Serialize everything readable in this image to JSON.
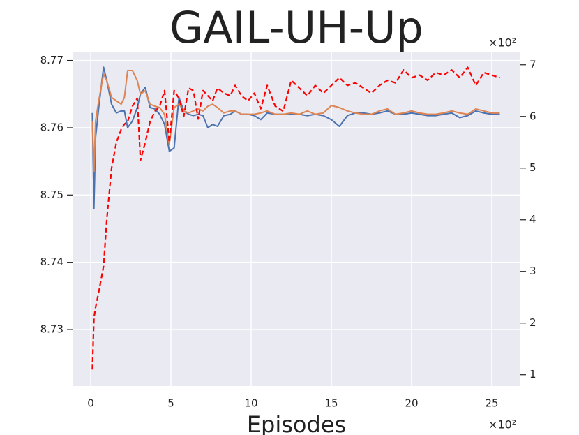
{
  "chart_data": {
    "type": "line",
    "title": "GAIL-UH-Up",
    "x_label": "Episodes",
    "x_offset_label": "×10²",
    "y2_offset_label": "×10²",
    "x": [
      0.1,
      0.2,
      0.3,
      0.5,
      0.8,
      1.0,
      1.3,
      1.6,
      1.9,
      2.1,
      2.3,
      2.6,
      2.9,
      3.1,
      3.4,
      3.7,
      4.0,
      4.3,
      4.6,
      4.9,
      5.2,
      5.5,
      5.8,
      6.1,
      6.4,
      6.7,
      7.0,
      7.3,
      7.6,
      7.9,
      8.3,
      8.7,
      9.0,
      9.4,
      9.8,
      10.2,
      10.6,
      11.0,
      11.5,
      12.0,
      12.5,
      13.0,
      13.5,
      14.0,
      14.5,
      15.0,
      15.5,
      16.0,
      16.5,
      17.0,
      17.5,
      18.0,
      18.5,
      19.0,
      19.5,
      20.0,
      20.5,
      21.0,
      21.5,
      22.0,
      22.5,
      23.0,
      23.5,
      24.0,
      24.5,
      25.0,
      25.5
    ],
    "series": [
      {
        "color": "#4c72b0",
        "axis": "y",
        "dashed": false,
        "values": [
          8.7622,
          8.748,
          8.7585,
          8.763,
          8.769,
          8.767,
          8.7635,
          8.7622,
          8.7625,
          8.7625,
          8.76,
          8.761,
          8.763,
          8.765,
          8.766,
          8.763,
          8.7628,
          8.762,
          8.7605,
          8.7565,
          8.757,
          8.7645,
          8.7625,
          8.762,
          8.7618,
          8.762,
          8.7618,
          8.76,
          8.7605,
          8.7602,
          8.7618,
          8.762,
          8.7625,
          8.762,
          8.762,
          8.7618,
          8.7612,
          8.7622,
          8.762,
          8.762,
          8.762,
          8.762,
          8.7618,
          8.762,
          8.7618,
          8.7612,
          8.7602,
          8.7618,
          8.7622,
          8.7622,
          8.762,
          8.7622,
          8.7625,
          8.762,
          8.762,
          8.7622,
          8.762,
          8.7618,
          8.7618,
          8.762,
          8.7622,
          8.7615,
          8.7618,
          8.7625,
          8.7622,
          8.762,
          8.762
        ]
      },
      {
        "color": "#dd8452",
        "axis": "y",
        "dashed": false,
        "values": [
          8.761,
          8.7535,
          8.761,
          8.764,
          8.768,
          8.767,
          8.7645,
          8.764,
          8.7635,
          8.7645,
          8.7685,
          8.7685,
          8.767,
          8.765,
          8.7655,
          8.7635,
          8.7632,
          8.763,
          8.762,
          8.7575,
          8.763,
          8.7635,
          8.7625,
          8.7622,
          8.7625,
          8.7628,
          8.7625,
          8.7632,
          8.7635,
          8.763,
          8.7622,
          8.7625,
          8.7625,
          8.762,
          8.762,
          8.762,
          8.7622,
          8.7625,
          8.762,
          8.762,
          8.7622,
          8.762,
          8.7625,
          8.762,
          8.7622,
          8.7633,
          8.763,
          8.7625,
          8.7622,
          8.762,
          8.762,
          8.7625,
          8.7628,
          8.762,
          8.7622,
          8.7625,
          8.7622,
          8.762,
          8.762,
          8.7622,
          8.7625,
          8.7622,
          8.762,
          8.7628,
          8.7625,
          8.7622,
          8.7622
        ]
      },
      {
        "color": "#ff0000",
        "axis": "y2",
        "dashed": true,
        "values": [
          1.1,
          2.1,
          2.3,
          2.6,
          3.1,
          4.0,
          5.0,
          5.5,
          5.75,
          5.85,
          5.9,
          6.2,
          6.35,
          5.15,
          5.5,
          5.9,
          6.1,
          6.2,
          6.5,
          5.5,
          6.5,
          6.35,
          6.0,
          6.55,
          6.5,
          5.95,
          6.5,
          6.4,
          6.3,
          6.55,
          6.45,
          6.4,
          6.6,
          6.4,
          6.3,
          6.45,
          6.15,
          6.6,
          6.2,
          6.1,
          6.7,
          6.55,
          6.4,
          6.6,
          6.45,
          6.6,
          6.75,
          6.6,
          6.65,
          6.55,
          6.45,
          6.6,
          6.7,
          6.65,
          6.9,
          6.75,
          6.8,
          6.7,
          6.85,
          6.8,
          6.9,
          6.75,
          6.95,
          6.6,
          6.85,
          6.8,
          6.75
        ]
      }
    ],
    "xlim": [
      -1.09,
      26.74
    ],
    "xticks": [
      0,
      5,
      10,
      15,
      20,
      25
    ],
    "ylim": [
      8.7216,
      8.7712
    ],
    "yticks": [
      8.73,
      8.74,
      8.75,
      8.76,
      8.77
    ],
    "y2lim": [
      0.78,
      7.24
    ],
    "y2ticks": [
      1,
      2,
      3,
      4,
      5,
      6,
      7
    ],
    "grid": true
  }
}
